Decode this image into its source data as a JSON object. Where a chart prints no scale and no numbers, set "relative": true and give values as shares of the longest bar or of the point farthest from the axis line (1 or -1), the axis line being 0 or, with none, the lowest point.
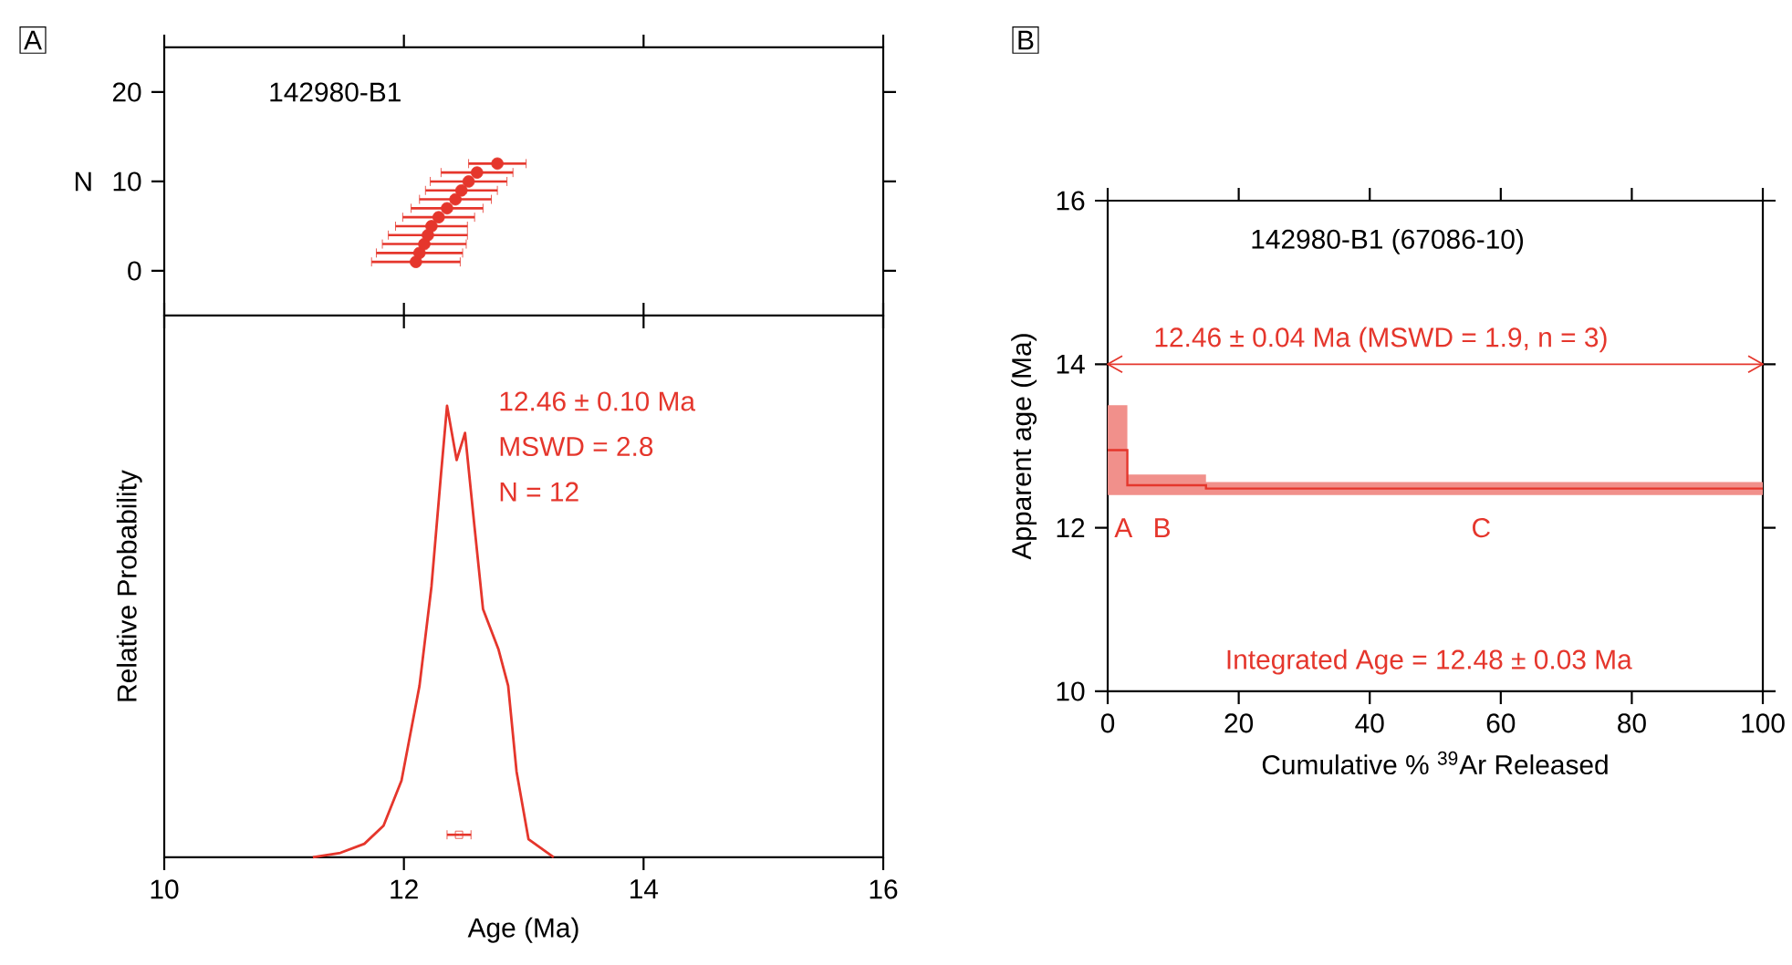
{
  "chart_data": [
    {
      "type": "scatter",
      "title": "A",
      "ylabel": "N",
      "annotations": [
        "142980-B1"
      ],
      "color": "#e5362c",
      "marker": "circle",
      "xlim": [
        10,
        16
      ],
      "xticks": [
        10,
        12,
        14,
        16
      ],
      "ylim": [
        -5,
        25
      ],
      "yticks": [
        0,
        10,
        20
      ],
      "tick_labels": "y",
      "x": [
        12.1,
        12.13,
        12.17,
        12.2,
        12.23,
        12.29,
        12.36,
        12.43,
        12.48,
        12.54,
        12.61,
        12.78
      ],
      "values": [
        1,
        2,
        3,
        4,
        5,
        6,
        7,
        8,
        9,
        10,
        11,
        12
      ],
      "xerrors": [
        0.37,
        0.36,
        0.35,
        0.33,
        0.3,
        0.3,
        0.3,
        0.3,
        0.3,
        0.32,
        0.3,
        0.24
      ]
    },
    {
      "type": "line",
      "relative": true,
      "xlabel": "Age (Ma)",
      "ylabel": "Relative Probability",
      "xlim": [
        10,
        16
      ],
      "xticks": [
        10,
        12,
        14,
        16
      ],
      "annotations": [
        "12.46 ± 0.10 Ma",
        "MSWD = 2.8",
        "N = 12"
      ],
      "series": [
        {
          "type": "line",
          "color": "#e5362c",
          "x": [
            11.24,
            11.47,
            11.67,
            11.83,
            11.98,
            12.13,
            12.23,
            12.31,
            12.36,
            12.44,
            12.51,
            12.59,
            12.66,
            12.79,
            12.87,
            12.94,
            13.04,
            13.25
          ],
          "values": [
            0,
            0.01,
            0.03,
            0.07,
            0.17,
            0.38,
            0.6,
            0.85,
            1,
            0.88,
            0.94,
            0.73,
            0.55,
            0.46,
            0.38,
            0.19,
            0.04,
            0
          ]
        },
        {
          "type": "scatter",
          "color": "#e5362c",
          "marker": "square",
          "x": [
            12.46
          ],
          "values": [
            0.05
          ],
          "xerrors": [
            0.1
          ]
        }
      ]
    },
    {
      "type": "step",
      "title": "B",
      "xlabel": "Cumulative % $^{39}$Ar Released",
      "ylabel": "Apparent age (Ma)",
      "xlim": [
        0,
        100
      ],
      "xticks": [
        0,
        20,
        40,
        60,
        80,
        100
      ],
      "ylim": [
        10,
        16
      ],
      "yticks": [
        10,
        12,
        14,
        16
      ],
      "annotations": [
        "142980-B1 (67086-10)",
        "Integrated Age = 12.48 ± 0.03 Ma",
        "A",
        "B",
        "C",
        "12.46 ± 0.04 Ma (MSWD = 1.9, n = 3)"
      ],
      "ref_lines": [
        {
          "axis": "y",
          "value": 14,
          "color": "#e5362c"
        }
      ],
      "series": [
        {
          "type": "step",
          "color": "#e5362c",
          "x": [
            0,
            3,
            15,
            100
          ],
          "values": [
            12.95,
            12.52,
            12.48,
            12.48
          ],
          "lower": [
            12.4,
            12.4,
            12.4,
            12.4
          ],
          "upper": [
            13.5,
            12.65,
            12.56,
            12.56
          ]
        }
      ]
    }
  ]
}
